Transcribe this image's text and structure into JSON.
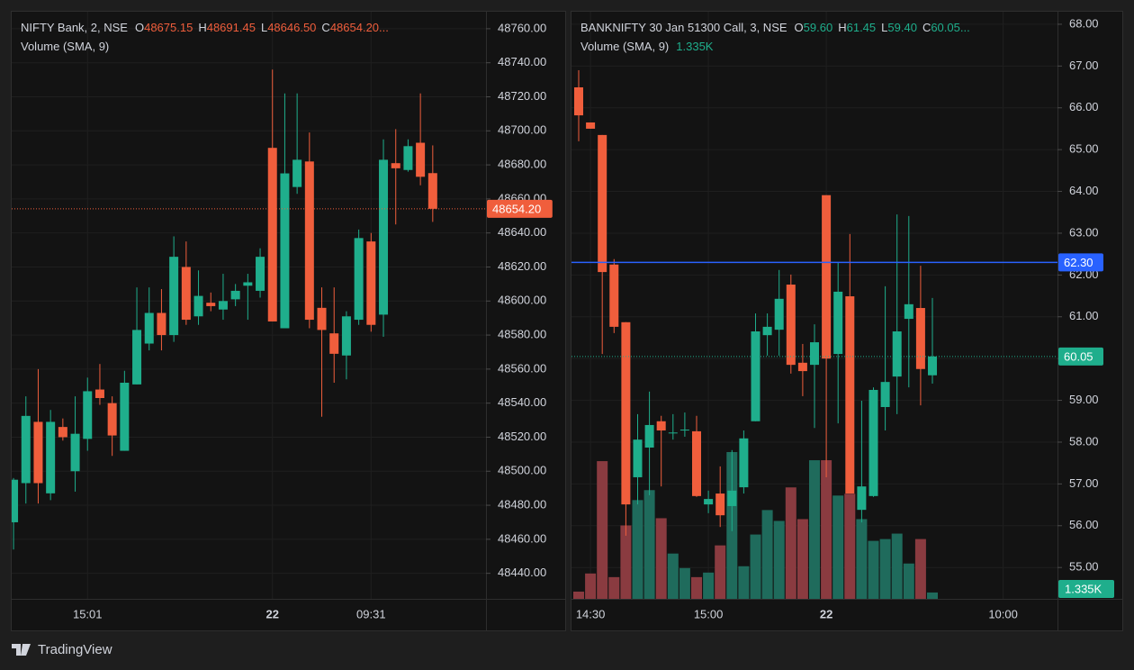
{
  "chart_data": [
    {
      "type": "candlestick",
      "title": "NIFTY Bank, 2, NSE",
      "ohlc": [
        {
          "label": "O",
          "value": "48675.15"
        },
        {
          "label": "H",
          "value": "48691.45"
        },
        {
          "label": "L",
          "value": "48646.50"
        },
        {
          "label": "C",
          "value": "48654.20..."
        }
      ],
      "ohlc_color": "#f05e3c",
      "volume_title": "Volume (SMA, 9)",
      "up_color": "#1fae8c",
      "down_color": "#f05e3c",
      "open": [
        48470,
        48493,
        48529,
        48487,
        48526,
        48500,
        48519,
        48548,
        48540,
        48512,
        48551,
        48575,
        48593,
        48580,
        48620,
        48591,
        48599,
        48595,
        48601,
        48609,
        48606,
        48690,
        48584,
        48667,
        48682,
        48596,
        48581,
        48568,
        48589,
        48635,
        48592,
        48681,
        48677,
        48693,
        48675.15
      ],
      "high": [
        48496,
        48544,
        48560,
        48536,
        48531,
        48544,
        48555,
        48563,
        48544,
        48559,
        48608,
        48608,
        48607,
        48638,
        48635,
        48618,
        48605,
        48616,
        48610,
        48616,
        48631,
        48736,
        48722,
        48722,
        48699,
        48608,
        48608,
        48594,
        48642,
        48640,
        48695,
        48701,
        48695,
        48722,
        48691.45
      ],
      "low": [
        48454,
        48481,
        48481,
        48483,
        48518,
        48488,
        48512,
        48539,
        48509,
        48512,
        48551,
        48571,
        48571,
        48576,
        48586,
        48586,
        48594,
        48589,
        48597,
        48589,
        48602,
        48588,
        48584,
        48663,
        48584,
        48532,
        48552,
        48554,
        48586,
        48582,
        48579,
        48645,
        48676,
        48668,
        48646.5
      ],
      "close": [
        48495,
        48532.5,
        48493,
        48529,
        48520,
        48522,
        48547,
        48543,
        48521,
        48552,
        48583,
        48593,
        48580,
        48626,
        48589,
        48603,
        48597,
        48600,
        48606,
        48611,
        48626,
        48588,
        48675,
        48683,
        48589,
        48583,
        48569,
        48591,
        48637,
        48586,
        48683,
        48678,
        48691,
        48673,
        48654.2
      ],
      "xlim": [
        -0.15,
        38.32
      ],
      "xticks": [
        {
          "value": 6,
          "label": "15:01"
        },
        {
          "value": 21,
          "label": "22",
          "bold": true
        },
        {
          "value": 29,
          "label": "09:31"
        }
      ],
      "ylim": [
        48425,
        48770
      ],
      "yticks": [
        {
          "value": 48760,
          "label": "48760.00"
        },
        {
          "value": 48740,
          "label": "48740.00"
        },
        {
          "value": 48720,
          "label": "48720.00"
        },
        {
          "value": 48700,
          "label": "48700.00"
        },
        {
          "value": 48680,
          "label": "48680.00"
        },
        {
          "value": 48660,
          "label": "48660.00"
        },
        {
          "value": 48640,
          "label": "48640.00"
        },
        {
          "value": 48620,
          "label": "48620.00"
        },
        {
          "value": 48600,
          "label": "48600.00"
        },
        {
          "value": 48580,
          "label": "48580.00"
        },
        {
          "value": 48560,
          "label": "48560.00"
        },
        {
          "value": 48540,
          "label": "48540.00"
        },
        {
          "value": 48520,
          "label": "48520.00"
        },
        {
          "value": 48500,
          "label": "48500.00"
        },
        {
          "value": 48480,
          "label": "48480.00"
        },
        {
          "value": 48460,
          "label": "48460.00"
        },
        {
          "value": 48440,
          "label": "48440.00"
        }
      ],
      "price_lines": [
        {
          "value": 48654.2,
          "label": "48654.20",
          "color": "#f05e3c",
          "style": "dotted"
        }
      ],
      "grid": true
    },
    {
      "type": "candlestick",
      "title": "BANKNIFTY 30 Jan 51300 Call, 3, NSE",
      "ohlc": [
        {
          "label": "O",
          "value": "59.60"
        },
        {
          "label": "H",
          "value": "61.45"
        },
        {
          "label": "L",
          "value": "59.40"
        },
        {
          "label": "C",
          "value": "60.05..."
        }
      ],
      "ohlc_color": "#1fae8c",
      "volume_title": "Volume (SMA, 9)",
      "up_color": "#1fae8c",
      "down_color": "#f05e3c",
      "volume_up_color": "#1f6b5c",
      "volume_down_color": "#8a3b40",
      "open": [
        66.49,
        65.65,
        65.35,
        62.25,
        60.87,
        57.16,
        57.87,
        58.5,
        58.21,
        58.28,
        58.26,
        56.51,
        56.77,
        56.47,
        56.92,
        58.5,
        60.56,
        60.69,
        61.77,
        59.9,
        59.85,
        63.91,
        60.11,
        61.49,
        56.38,
        56.71,
        58.84,
        59.57,
        60.95,
        61.21,
        59.6
      ],
      "high": [
        66.9,
        65.65,
        65.35,
        62.38,
        60.87,
        58.67,
        59.21,
        58.63,
        58.67,
        58.71,
        58.63,
        56.84,
        57.42,
        57.81,
        58.28,
        61.08,
        61.08,
        62.12,
        62.01,
        60.35,
        60.82,
        63.91,
        62.29,
        62.98,
        58.99,
        59.31,
        61.73,
        63.45,
        63.41,
        62.22,
        61.45
      ],
      "low": [
        65.2,
        65.5,
        60.11,
        60.61,
        55.76,
        56.51,
        56.73,
        56.94,
        58.06,
        58.13,
        56.69,
        56.3,
        55.97,
        55.87,
        56.77,
        58.5,
        60.07,
        60.07,
        59.64,
        59.1,
        58.34,
        57.16,
        58.45,
        56.77,
        56.08,
        56.69,
        58.28,
        58.67,
        59.31,
        58.88,
        59.4
      ],
      "close": [
        65.82,
        65.5,
        62.07,
        60.76,
        56.51,
        58.06,
        58.41,
        58.28,
        58.23,
        58.3,
        56.71,
        56.64,
        56.25,
        56.84,
        58.09,
        60.65,
        60.76,
        61.43,
        59.85,
        59.7,
        60.39,
        60.0,
        61.6,
        56.77,
        56.94,
        59.25,
        59.44,
        60.65,
        61.3,
        59.75,
        60.05
      ],
      "volume": [
        1520,
        5320,
        28880,
        4560,
        15390,
        20710,
        22800,
        16910,
        9500,
        6460,
        4560,
        5510,
        11210,
        30780,
        6840,
        13490,
        18620,
        16340,
        23370,
        16720,
        29070,
        29070,
        21660,
        22040,
        16720,
        12160,
        12540,
        13680,
        7410,
        12540,
        1335
      ],
      "volume_label": {
        "value": 1335,
        "label": "1.335K"
      },
      "xlim": [
        -0.61,
        40.61
      ],
      "xticks": [
        {
          "value": 1,
          "label": "14:30"
        },
        {
          "value": 11,
          "label": "15:00"
        },
        {
          "value": 21,
          "label": "22",
          "bold": true
        },
        {
          "value": 36,
          "label": "10:00"
        }
      ],
      "ylim": [
        54.25,
        68.3
      ],
      "yticks": [
        {
          "value": 68,
          "label": "68.00"
        },
        {
          "value": 67,
          "label": "67.00"
        },
        {
          "value": 66,
          "label": "66.00"
        },
        {
          "value": 65,
          "label": "65.00"
        },
        {
          "value": 64,
          "label": "64.00"
        },
        {
          "value": 63,
          "label": "63.00"
        },
        {
          "value": 62,
          "label": "62.00"
        },
        {
          "value": 61,
          "label": "61.00"
        },
        {
          "value": 60,
          "label": "60.00"
        },
        {
          "value": 59,
          "label": "59.00"
        },
        {
          "value": 58,
          "label": "58.00"
        },
        {
          "value": 57,
          "label": "57.00"
        },
        {
          "value": 56,
          "label": "56.00"
        },
        {
          "value": 55,
          "label": "55.00"
        }
      ],
      "price_lines": [
        {
          "value": 62.3,
          "label": "62.30",
          "color": "#2962ff",
          "style": "solid"
        },
        {
          "value": 60.05,
          "label": "60.05",
          "color": "#1fae8c",
          "style": "dotted"
        }
      ],
      "grid": true
    }
  ],
  "footer": {
    "brand": "TradingView"
  }
}
